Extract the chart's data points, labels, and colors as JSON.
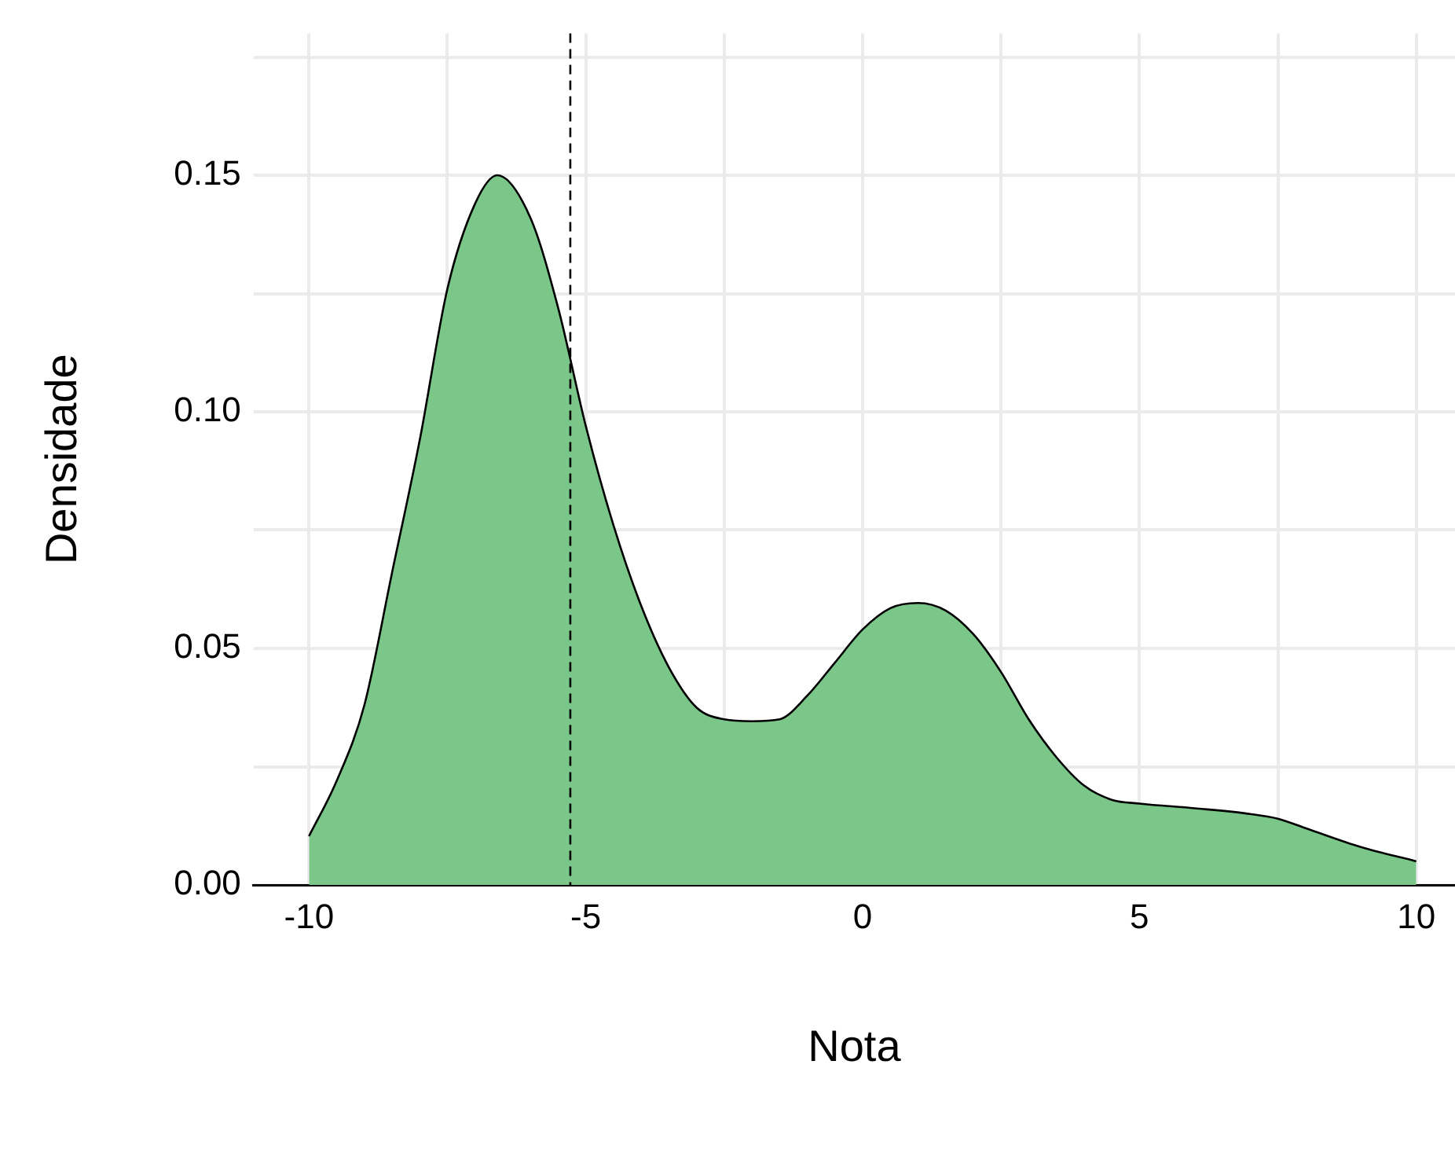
{
  "chart_data": {
    "type": "area",
    "xlabel": "Nota",
    "ylabel": "Densidade",
    "x": [
      -10,
      -9.5,
      -9,
      -8.5,
      -8,
      -7.5,
      -7,
      -6.6,
      -6,
      -5.5,
      -5,
      -4.5,
      -4,
      -3.5,
      -3,
      -2.5,
      -2,
      -1.5,
      -1,
      -0.5,
      0,
      0.5,
      1,
      1.5,
      2,
      2.5,
      3,
      3.5,
      4,
      4.5,
      5,
      6,
      7,
      7.5,
      8,
      9,
      10
    ],
    "values": [
      0.0103,
      0.022,
      0.038,
      0.066,
      0.094,
      0.126,
      0.144,
      0.15,
      0.141,
      0.122,
      0.097,
      0.076,
      0.059,
      0.046,
      0.0375,
      0.035,
      0.0346,
      0.035,
      0.04,
      0.047,
      0.054,
      0.0585,
      0.0596,
      0.058,
      0.053,
      0.045,
      0.035,
      0.027,
      0.021,
      0.018,
      0.0172,
      0.0162,
      0.015,
      0.014,
      0.012,
      0.008,
      0.005
    ],
    "color": "#7bc689",
    "xlim": [
      -11,
      10.7
    ],
    "ylim": [
      0,
      0.18
    ],
    "xticks": [
      -10,
      {
        "value": -7.5,
        "label": null
      },
      -5,
      {
        "value": -2.5,
        "label": null
      },
      0,
      {
        "value": 2.5,
        "label": null
      },
      5,
      {
        "value": 7.5,
        "label": null
      },
      10
    ],
    "yticks": [
      {
        "value": 0,
        "label": "0.00"
      },
      {
        "value": 0.025,
        "label": null
      },
      {
        "value": 0.05,
        "label": "0.05"
      },
      {
        "value": 0.075,
        "label": null
      },
      {
        "value": 0.1,
        "label": "0.10"
      },
      {
        "value": 0.125,
        "label": null
      },
      {
        "value": 0.15,
        "label": "0.15"
      },
      {
        "value": 0.175,
        "label": null
      }
    ],
    "grid": true,
    "ref_lines": [
      {
        "axis": "x",
        "value": -5.28,
        "line_style": "dashed",
        "color": "#000000"
      }
    ]
  }
}
